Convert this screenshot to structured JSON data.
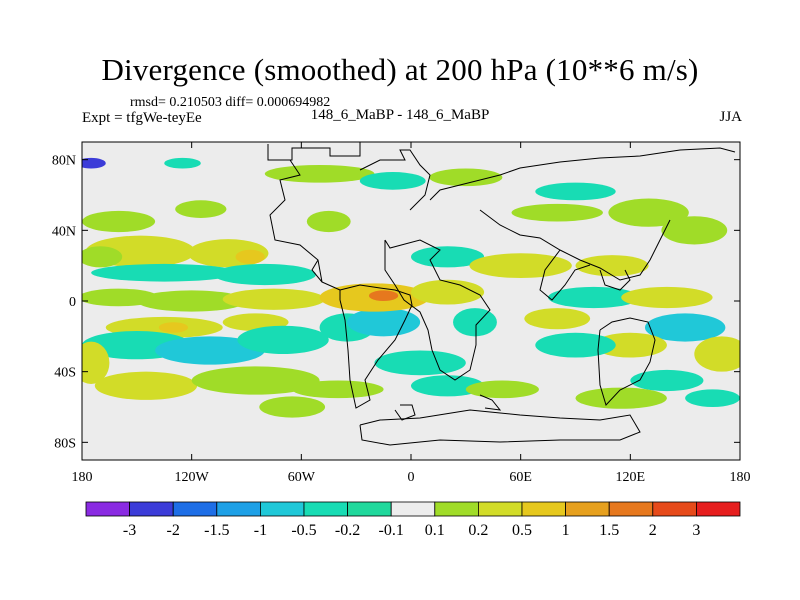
{
  "chart_data": {
    "type": "heatmap",
    "title": "Divergence (smoothed) at 200 hPa (10**6 m/s)",
    "stats": "rmsd= 0.210503 diff= 0.000694982",
    "left_label": "Expt = tfgWe-teyEe",
    "center_label": "148_6_MaBP - 148_6_MaBP",
    "right_label": "JJA",
    "xlim": [
      -180,
      180
    ],
    "ylim": [
      -90,
      90
    ],
    "x_ticks": [
      {
        "value": -180,
        "label": "180"
      },
      {
        "value": -120,
        "label": "120W"
      },
      {
        "value": -60,
        "label": "60W"
      },
      {
        "value": 0,
        "label": "0"
      },
      {
        "value": 60,
        "label": "60E"
      },
      {
        "value": 120,
        "label": "120E"
      },
      {
        "value": 180,
        "label": "180"
      }
    ],
    "y_ticks": [
      {
        "value": 80,
        "label": "80N"
      },
      {
        "value": 40,
        "label": "40N"
      },
      {
        "value": 0,
        "label": "0"
      },
      {
        "value": -40,
        "label": "40S"
      },
      {
        "value": -80,
        "label": "80S"
      }
    ],
    "colorbar": {
      "colors": [
        "#8a2be2",
        "#3c3cd8",
        "#1e6ee6",
        "#1ea0e6",
        "#20c8d8",
        "#18dcb4",
        "#20d89c",
        "#ededed",
        "#a0dc28",
        "#d2dc28",
        "#e6c81e",
        "#e6a01e",
        "#e6781e",
        "#e64a1a",
        "#e61e1e"
      ],
      "labels": [
        "-3",
        "-2",
        "-1.5",
        "-1",
        "-0.5",
        "-0.2",
        "-0.1",
        "0.1",
        "0.2",
        "0.5",
        "1",
        "1.5",
        "2",
        "3"
      ]
    },
    "features": [
      {
        "lon": -148,
        "lat": 28,
        "w": 30,
        "h": 9,
        "level": 9
      },
      {
        "lon": -170,
        "lat": 25,
        "w": 12,
        "h": 6,
        "level": 8
      },
      {
        "lon": -100,
        "lat": 27,
        "w": 22,
        "h": 8,
        "level": 9
      },
      {
        "lon": -88,
        "lat": 25,
        "w": 8,
        "h": 4,
        "level": 10
      },
      {
        "lon": -135,
        "lat": 16,
        "w": 40,
        "h": 5,
        "level": 5
      },
      {
        "lon": -80,
        "lat": 15,
        "w": 28,
        "h": 6,
        "level": 5
      },
      {
        "lon": -160,
        "lat": 2,
        "w": 22,
        "h": 5,
        "level": 8
      },
      {
        "lon": -120,
        "lat": 0,
        "w": 30,
        "h": 6,
        "level": 8
      },
      {
        "lon": -75,
        "lat": 1,
        "w": 28,
        "h": 6,
        "level": 9
      },
      {
        "lon": -135,
        "lat": -15,
        "w": 32,
        "h": 6,
        "level": 9
      },
      {
        "lon": -130,
        "lat": -15,
        "w": 8,
        "h": 3,
        "level": 10
      },
      {
        "lon": -85,
        "lat": -12,
        "w": 18,
        "h": 5,
        "level": 9
      },
      {
        "lon": -150,
        "lat": -25,
        "w": 30,
        "h": 8,
        "level": 5
      },
      {
        "lon": -110,
        "lat": -28,
        "w": 30,
        "h": 8,
        "level": 4
      },
      {
        "lon": -70,
        "lat": -22,
        "w": 25,
        "h": 8,
        "level": 5
      },
      {
        "lon": -175,
        "lat": -35,
        "w": 10,
        "h": 12,
        "level": 9
      },
      {
        "lon": -145,
        "lat": -48,
        "w": 28,
        "h": 8,
        "level": 9
      },
      {
        "lon": -85,
        "lat": -45,
        "w": 35,
        "h": 8,
        "level": 8
      },
      {
        "lon": -65,
        "lat": -60,
        "w": 18,
        "h": 6,
        "level": 8
      },
      {
        "lon": -35,
        "lat": -15,
        "w": 15,
        "h": 8,
        "level": 5
      },
      {
        "lon": -15,
        "lat": -12,
        "w": 20,
        "h": 8,
        "level": 4
      },
      {
        "lon": -20,
        "lat": 2,
        "w": 30,
        "h": 8,
        "level": 10
      },
      {
        "lon": -15,
        "lat": 3,
        "w": 8,
        "h": 3,
        "level": 12
      },
      {
        "lon": 20,
        "lat": 5,
        "w": 20,
        "h": 7,
        "level": 9
      },
      {
        "lon": 20,
        "lat": 25,
        "w": 20,
        "h": 6,
        "level": 5
      },
      {
        "lon": 60,
        "lat": 20,
        "w": 28,
        "h": 7,
        "level": 9
      },
      {
        "lon": 35,
        "lat": -12,
        "w": 12,
        "h": 8,
        "level": 5
      },
      {
        "lon": 5,
        "lat": -35,
        "w": 25,
        "h": 7,
        "level": 5
      },
      {
        "lon": 20,
        "lat": -48,
        "w": 20,
        "h": 6,
        "level": 5
      },
      {
        "lon": 50,
        "lat": -50,
        "w": 20,
        "h": 5,
        "level": 8
      },
      {
        "lon": -40,
        "lat": -50,
        "w": 25,
        "h": 5,
        "level": 8
      },
      {
        "lon": -160,
        "lat": 45,
        "w": 20,
        "h": 6,
        "level": 8
      },
      {
        "lon": -115,
        "lat": 52,
        "w": 14,
        "h": 5,
        "level": 8
      },
      {
        "lon": -45,
        "lat": 45,
        "w": 12,
        "h": 6,
        "level": 8
      },
      {
        "lon": -50,
        "lat": 72,
        "w": 30,
        "h": 5,
        "level": 8
      },
      {
        "lon": -10,
        "lat": 68,
        "w": 18,
        "h": 5,
        "level": 5
      },
      {
        "lon": 30,
        "lat": 70,
        "w": 20,
        "h": 5,
        "level": 8
      },
      {
        "lon": 80,
        "lat": 50,
        "w": 25,
        "h": 5,
        "level": 8
      },
      {
        "lon": 90,
        "lat": 62,
        "w": 22,
        "h": 5,
        "level": 5
      },
      {
        "lon": 130,
        "lat": 50,
        "w": 22,
        "h": 8,
        "level": 8
      },
      {
        "lon": 155,
        "lat": 40,
        "w": 18,
        "h": 8,
        "level": 8
      },
      {
        "lon": 110,
        "lat": 20,
        "w": 20,
        "h": 6,
        "level": 9
      },
      {
        "lon": 100,
        "lat": 2,
        "w": 25,
        "h": 6,
        "level": 5
      },
      {
        "lon": 140,
        "lat": 2,
        "w": 25,
        "h": 6,
        "level": 9
      },
      {
        "lon": 150,
        "lat": -15,
        "w": 22,
        "h": 8,
        "level": 4
      },
      {
        "lon": 120,
        "lat": -25,
        "w": 20,
        "h": 7,
        "level": 9
      },
      {
        "lon": 170,
        "lat": -30,
        "w": 15,
        "h": 10,
        "level": 9
      },
      {
        "lon": 140,
        "lat": -45,
        "w": 20,
        "h": 6,
        "level": 5
      },
      {
        "lon": 90,
        "lat": -25,
        "w": 22,
        "h": 7,
        "level": 5
      },
      {
        "lon": 80,
        "lat": -10,
        "w": 18,
        "h": 6,
        "level": 9
      },
      {
        "lon": 115,
        "lat": -55,
        "w": 25,
        "h": 6,
        "level": 8
      },
      {
        "lon": 165,
        "lat": -55,
        "w": 15,
        "h": 5,
        "level": 5
      },
      {
        "lon": -125,
        "lat": 78,
        "w": 10,
        "h": 3,
        "level": 5
      },
      {
        "lon": -175,
        "lat": 78,
        "w": 8,
        "h": 3,
        "level": 1
      }
    ]
  }
}
